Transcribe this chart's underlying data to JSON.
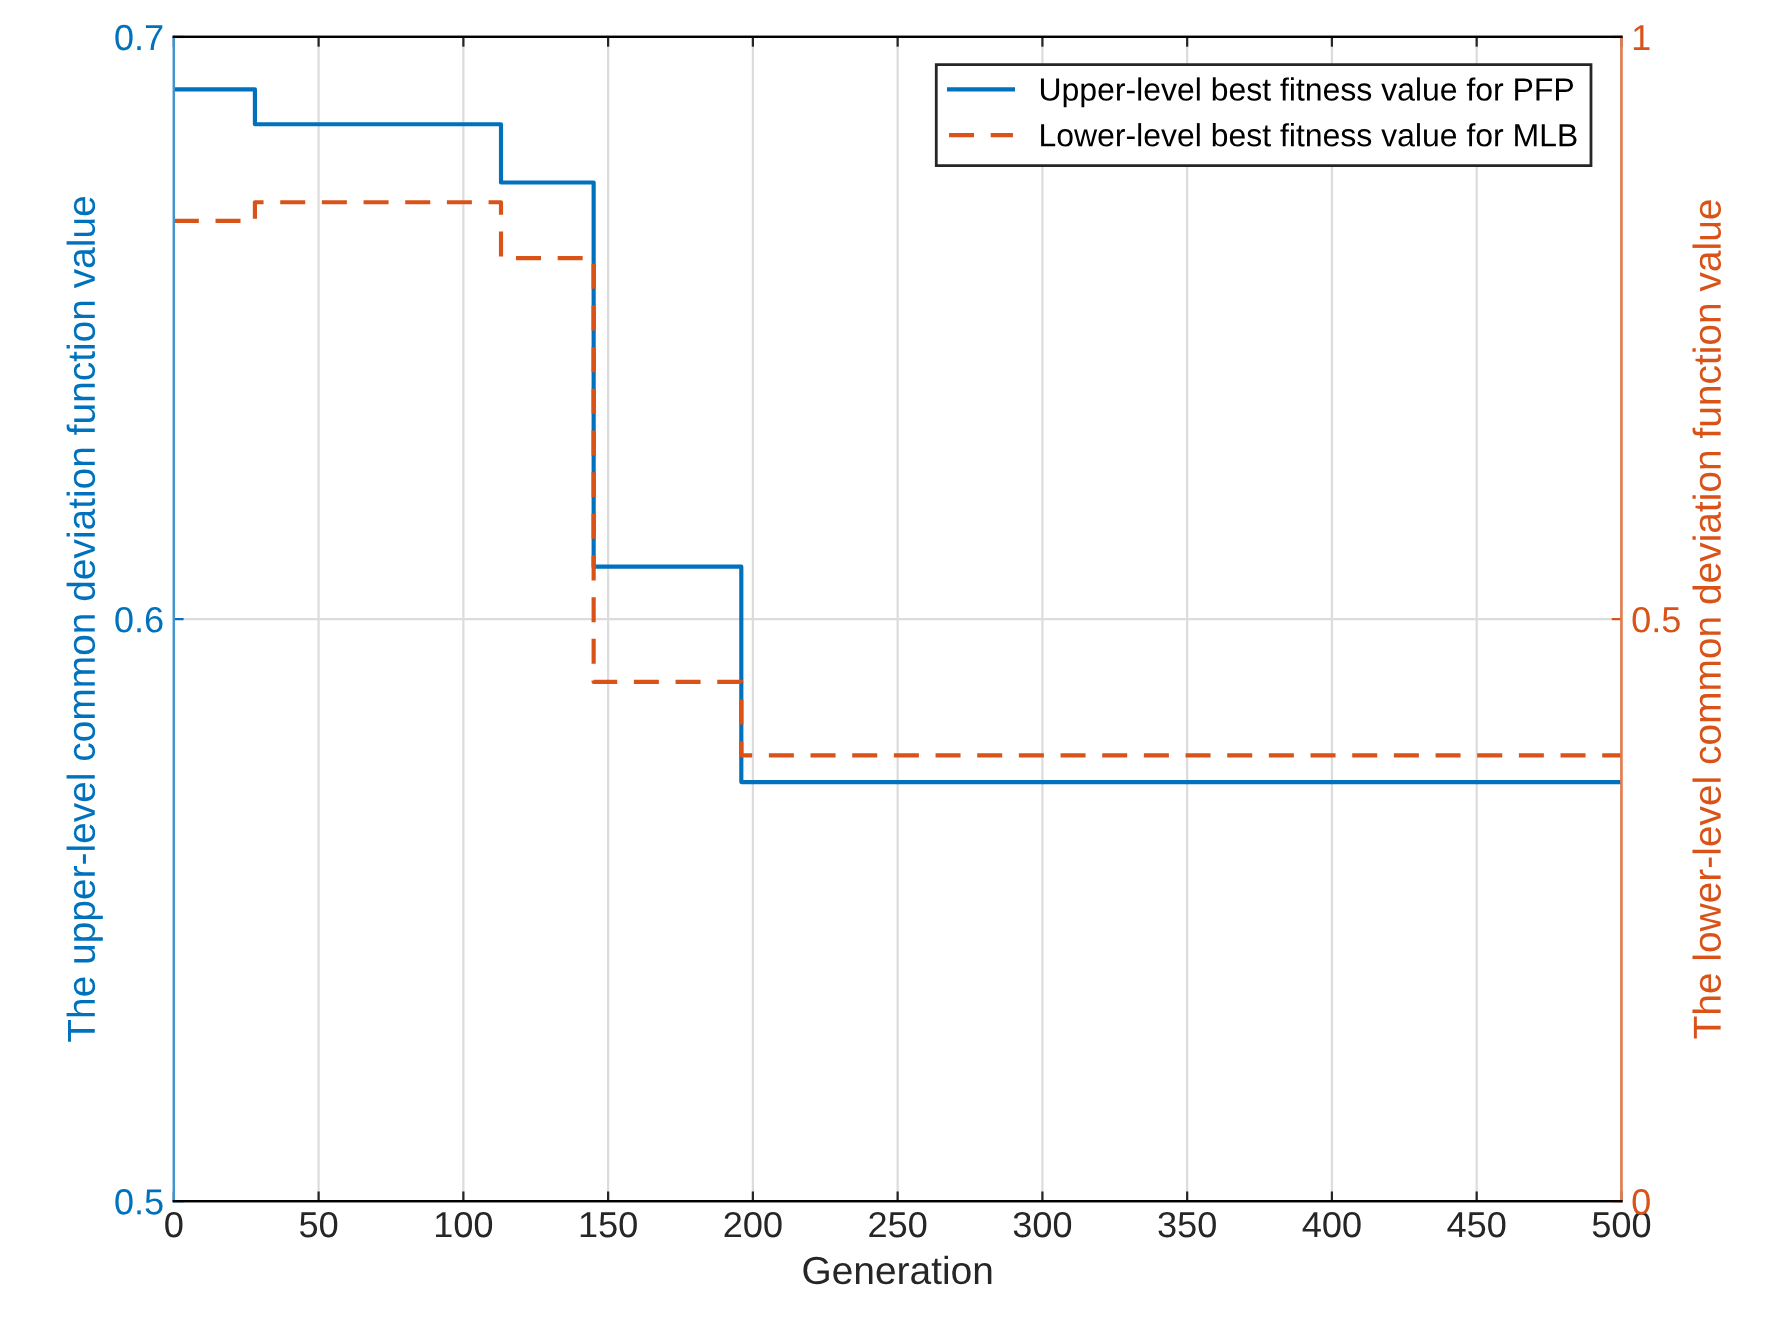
{
  "chart_data": {
    "type": "step",
    "xlabel": "Generation",
    "ylabel": "The upper-level common deviation function value",
    "y2label": "The lower-level common deviation function value",
    "x": [
      0,
      28,
      113,
      145,
      196,
      500
    ],
    "series": [
      {
        "name": "Upper-level best fitness value for PFP",
        "color": "#0072bd",
        "values": [
          0.691,
          0.685,
          0.675,
          0.609,
          0.572,
          0.572
        ],
        "line_style": "solid"
      },
      {
        "name": "Lower-level best fitness value for MLB",
        "color": "#d95319",
        "values": [
          0.842,
          0.858,
          0.81,
          0.446,
          0.383,
          0.383
        ],
        "axis": "y2",
        "line_style": "dashed"
      }
    ],
    "xlim": [
      0,
      500
    ],
    "xticks": [
      0,
      50,
      100,
      150,
      200,
      250,
      300,
      350,
      400,
      450,
      500
    ],
    "ylim": [
      0.5,
      0.7
    ],
    "yticks": [
      0.5,
      0.6,
      0.7
    ],
    "y2lim": [
      0,
      1
    ],
    "y2ticks": [
      0,
      0.5,
      1
    ],
    "grid": true,
    "legend": "top right"
  }
}
